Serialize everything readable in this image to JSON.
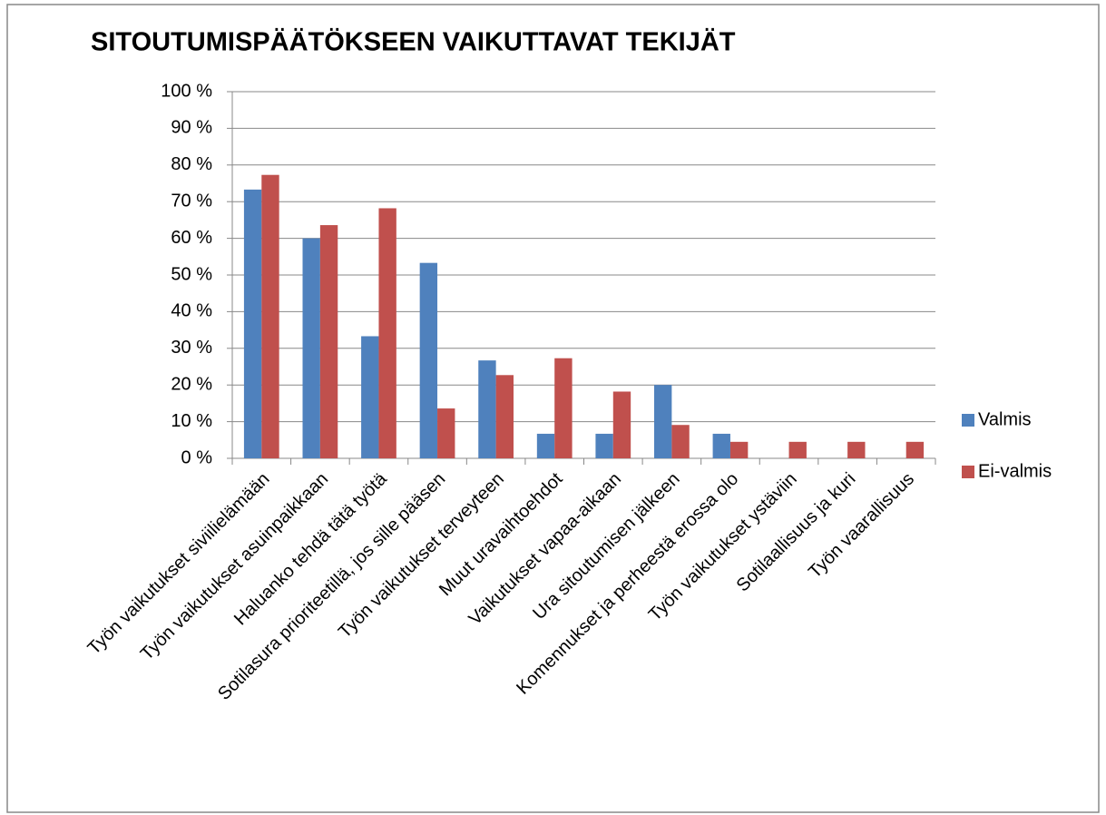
{
  "chart_data": {
    "type": "bar",
    "title": "SITOUTUMISPÄÄTÖKSEEN VAIKUTTAVAT  TEKIJÄT",
    "categories": [
      "Työn vaikutukset siviilielämään",
      "Työn vaikutukset asuinpaikkaan",
      "Haluanko tehdä tätä työtä",
      "Sotilasura prioriteetillä, jos sille pääsen",
      "Työn vaikutukset terveyteen",
      "Muut uravaihtoehdot",
      "Vaikutukset vapaa-aikaan",
      "Ura sitoutumisen jälkeen",
      "Komennukset ja perheestä erossa olo",
      "Työn vaikutukset ystäviin",
      "Sotilaallisuus ja kuri",
      "Työn vaarallisuus"
    ],
    "series": [
      {
        "name": "Valmis",
        "color": "#4f81bd",
        "values": [
          73.3,
          60,
          33.3,
          53.3,
          26.7,
          6.7,
          6.7,
          20,
          6.7,
          0,
          0,
          0
        ]
      },
      {
        "name": "Ei-valmis",
        "color": "#c0504d",
        "values": [
          77.3,
          63.6,
          68.2,
          13.6,
          22.7,
          27.3,
          18.2,
          9.1,
          4.5,
          4.5,
          4.5,
          4.5
        ]
      }
    ],
    "ylim": [
      0,
      100
    ],
    "yticks": [
      {
        "value": 0,
        "label": "0 %"
      },
      {
        "value": 10,
        "label": "10 %"
      },
      {
        "value": 20,
        "label": "20 %"
      },
      {
        "value": 30,
        "label": "30 %"
      },
      {
        "value": 40,
        "label": "40 %"
      },
      {
        "value": 50,
        "label": "50 %"
      },
      {
        "value": 60,
        "label": "60 %"
      },
      {
        "value": 70,
        "label": "70 %"
      },
      {
        "value": 80,
        "label": "80 %"
      },
      {
        "value": 90,
        "label": "90 %"
      },
      {
        "value": 100,
        "label": "100 %"
      }
    ],
    "grid": true,
    "legend": "right"
  }
}
